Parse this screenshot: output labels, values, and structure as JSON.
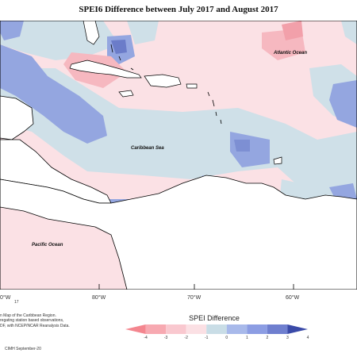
{
  "title": "SPEI6 Difference between July 2017 and August 2017",
  "labels": {
    "atlantic": "Atlantic Ocean",
    "caribbean": "Caribbean Sea",
    "pacific": "Pacific Ocean"
  },
  "coords": [
    "0°W",
    "80°W",
    "70°W",
    "60°W"
  ],
  "note_number": "17",
  "note_lines": [
    "n Map of the Caribbean Region.",
    "regating station based observations,",
    "DF, with NCEP/NCAR Reanalysis Data."
  ],
  "credit": "CIMH September-20",
  "legend": {
    "title": "SPEI Difference",
    "ticks": [
      "-4",
      "-3",
      "-2",
      "-1",
      "0",
      "1",
      "2",
      "3",
      "4"
    ],
    "colors": [
      "#f4868f",
      "#f7a9b1",
      "#f9c8cf",
      "#fbe0e4",
      "#c9dde6",
      "#a8b9ea",
      "#8c9de3",
      "#6f7fcf",
      "#3a4aa8"
    ]
  }
}
